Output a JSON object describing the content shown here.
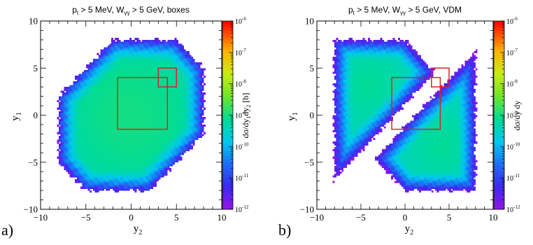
{
  "panels": [
    {
      "label": "a)",
      "chart_data": {
        "type": "heatmap",
        "title": "p_t > 5 MeV, W_γγ > 5 GeV, boxes",
        "title_parts": {
          "p": "p",
          "t": "t",
          "rest1": " > 5 MeV, W",
          "gg": "γγ",
          "rest2": " > 5 GeV, boxes"
        },
        "xlabel": "y_2",
        "xlabel_parts": {
          "base": "y",
          "sub": "2"
        },
        "ylabel": "y_1",
        "ylabel_parts": {
          "base": "y",
          "sub": "1"
        },
        "xlim": [
          -10,
          10
        ],
        "ylim": [
          -10,
          10
        ],
        "xticks": [
          "−10",
          "−5",
          "0",
          "5",
          "10"
        ],
        "yticks": [
          "−10",
          "−5",
          "0",
          "5",
          "10"
        ],
        "zlabel": "dσ/dy_1dy_2 [b]",
        "zlabel_parts": {
          "a": "dσ/dy",
          "s1": "1",
          "b": "dy",
          "s2": "2",
          "c": " [b]"
        },
        "zscale": "log",
        "zlim": [
          1e-12,
          1e-06
        ],
        "zticks": [
          {
            "b": "10",
            "e": "-12"
          },
          {
            "b": "10",
            "e": "-11"
          },
          {
            "b": "10",
            "e": "-10"
          },
          {
            "b": "10",
            "e": "-9"
          },
          {
            "b": "10",
            "e": "-8"
          },
          {
            "b": "10",
            "e": "-7"
          },
          {
            "b": "10",
            "e": "-6"
          }
        ],
        "distribution": {
          "shape": "octagon",
          "region": "|y1| ≤ 8, |y2| ≤ 8, |y1 − y2| ≤ 10, |y1 + y2| ≤ 13",
          "peak_log10": -9.0,
          "edge_log10": -11.6,
          "min_log10": -12.0
        },
        "boxes": [
          {
            "y2": [
              -1.5,
              4.0
            ],
            "y1": [
              -1.5,
              4.0
            ],
            "color": "#e02020"
          },
          {
            "y2": [
              3.0,
              5.0
            ],
            "y1": [
              3.0,
              5.0
            ],
            "color": "#e02020"
          }
        ]
      }
    },
    {
      "label": "b)",
      "chart_data": {
        "type": "heatmap",
        "title": "p_t > 5 MeV, W_γγ > 5 GeV, VDM",
        "title_parts": {
          "p": "p",
          "t": "t",
          "rest1": " > 5 MeV, W",
          "gg": "γγ",
          "rest2": " > 5 GeV, VDM"
        },
        "xlabel": "y_2",
        "xlabel_parts": {
          "base": "y",
          "sub": "2"
        },
        "ylabel": "y_1",
        "ylabel_parts": {
          "base": "y",
          "sub": "1"
        },
        "xlim": [
          -10,
          10
        ],
        "ylim": [
          -10,
          10
        ],
        "xticks": [
          "−10",
          "−5",
          "0",
          "5",
          "10"
        ],
        "yticks": [
          "−10",
          "−5",
          "0",
          "5",
          "10"
        ],
        "zlabel": "dσ/dy dy",
        "zlabel_parts": {
          "a": "dσ/dy",
          "s1": "",
          "b": " dy",
          "s2": "",
          "c": ""
        },
        "zscale": "log",
        "zlim": [
          1e-12,
          1e-06
        ],
        "zticks": [
          {
            "b": "10",
            "e": "-12"
          },
          {
            "b": "10",
            "e": "-11"
          },
          {
            "b": "10",
            "e": "-10"
          },
          {
            "b": "10",
            "e": "-9"
          },
          {
            "b": "10",
            "e": "-8"
          },
          {
            "b": "10",
            "e": "-7"
          },
          {
            "b": "10",
            "e": "-6"
          }
        ],
        "distribution": {
          "shape": "two-lobes",
          "upper_lobe": "y1 − y2 ≥ 1.2, |y1| ≤ 8, |y2| ≤ 8, y1 + y2 ≤ 8",
          "lower_lobe": "y2 − y1 ≥ 1.2, |y1| ≤ 8, |y2| ≤ 8, y1 + y2 ≥ −8",
          "peak_log10": -9.1,
          "edge_log10": -11.7,
          "min_log10": -12.0
        },
        "boxes": [
          {
            "y2": [
              -1.5,
              4.0
            ],
            "y1": [
              -1.5,
              4.0
            ],
            "color": "#e02020"
          },
          {
            "y2": [
              3.0,
              5.0
            ],
            "y1": [
              3.0,
              5.0
            ],
            "color": "#e02020"
          }
        ]
      }
    }
  ],
  "colors": {
    "box": "#e02020",
    "frame": "#000000"
  }
}
